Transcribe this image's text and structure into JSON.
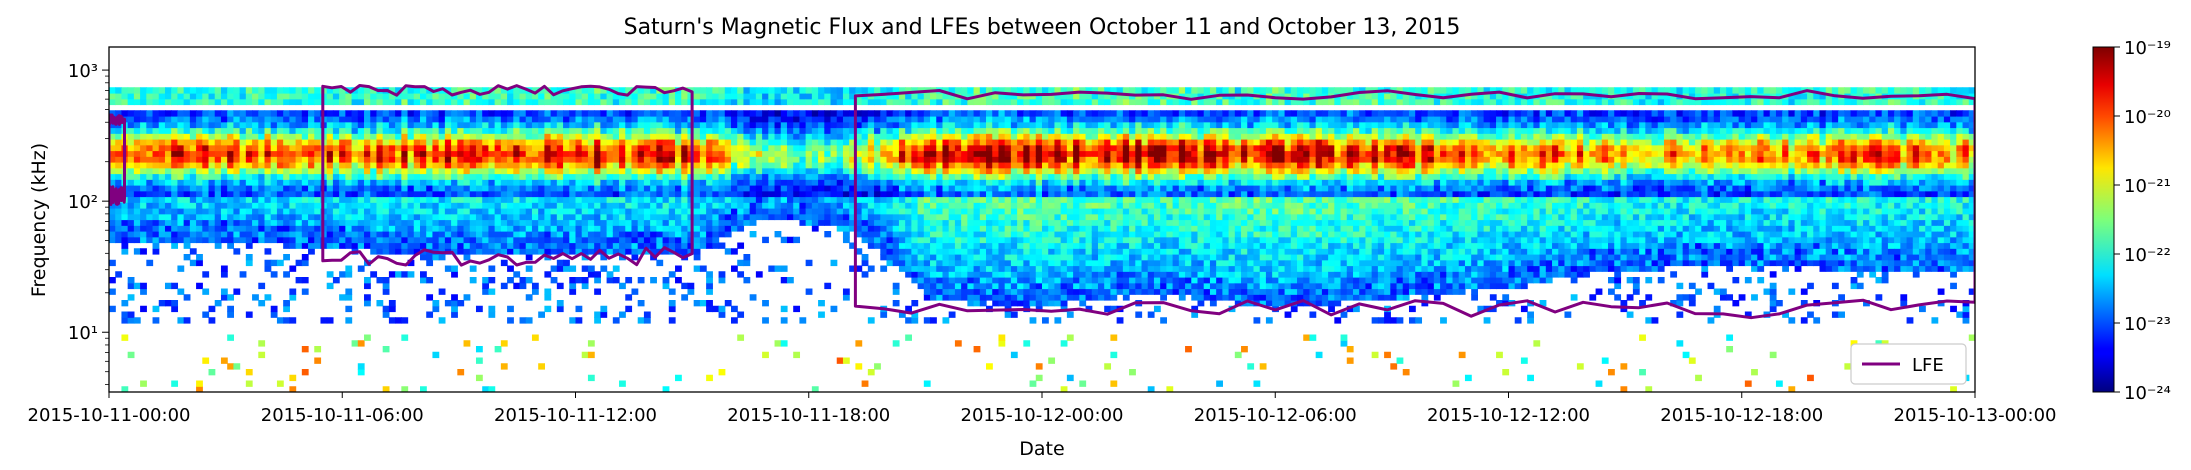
{
  "chart_data": {
    "type": "heatmap",
    "title": "Saturn's Magnetic Flux and LFEs between October 11 and October 13, 2015",
    "xlabel": "Date",
    "ylabel": "Frequency (kHz)",
    "x_ticks": [
      "2015-10-11-00:00",
      "2015-10-11-06:00",
      "2015-10-11-12:00",
      "2015-10-11-18:00",
      "2015-10-12-00:00",
      "2015-10-12-06:00",
      "2015-10-12-12:00",
      "2015-10-12-18:00",
      "2015-10-13-00:00"
    ],
    "xlim_hours": [
      0,
      48
    ],
    "y_scale": "log",
    "ylim_khz": [
      3.5,
      1500
    ],
    "y_ticks": [
      {
        "value": 10,
        "label": "10¹"
      },
      {
        "value": 100,
        "label": "10²"
      },
      {
        "value": 1000,
        "label": "10³"
      }
    ],
    "colorbar": {
      "colormap": "jet",
      "scale": "log",
      "range": [
        1e-24,
        1e-19
      ],
      "ticks": [
        {
          "value": -24,
          "label": "10⁻²⁴"
        },
        {
          "value": -23,
          "label": "10⁻²³"
        },
        {
          "value": -22,
          "label": "10⁻²²"
        },
        {
          "value": -21,
          "label": "10⁻²¹"
        },
        {
          "value": -20,
          "label": "10⁻²⁰"
        },
        {
          "value": -19,
          "label": "10⁻¹⁹"
        }
      ]
    },
    "legend": {
      "placement": "lower-right",
      "entries": [
        {
          "label": "LFE",
          "color": "#800080"
        }
      ]
    },
    "lfe_intervals": [
      {
        "start_hour": 0.0,
        "end_hour": 0.4,
        "f_low_khz": 110,
        "f_high_khz": 420
      },
      {
        "start_hour": 5.5,
        "end_hour": 15.0,
        "f_low_khz": 38,
        "f_high_khz": 700
      },
      {
        "start_hour": 19.2,
        "end_hour": 48.0,
        "f_low_khz": 15,
        "f_high_khz": 650
      }
    ],
    "activity_profile": [
      {
        "hour": 0,
        "f_low_khz": 48,
        "peak": 0.85
      },
      {
        "hour": 3,
        "f_low_khz": 50,
        "peak": 0.92
      },
      {
        "hour": 6,
        "f_low_khz": 42,
        "peak": 0.82
      },
      {
        "hour": 9,
        "f_low_khz": 40,
        "peak": 0.95
      },
      {
        "hour": 12,
        "f_low_khz": 40,
        "peak": 1.0
      },
      {
        "hour": 15,
        "f_low_khz": 38,
        "peak": 0.88
      },
      {
        "hour": 17,
        "f_low_khz": 75,
        "peak": 0.55
      },
      {
        "hour": 19,
        "f_low_khz": 60,
        "peak": 0.6
      },
      {
        "hour": 21,
        "f_low_khz": 18,
        "peak": 0.98
      },
      {
        "hour": 24,
        "f_low_khz": 16,
        "peak": 1.0
      },
      {
        "hour": 27,
        "f_low_khz": 20,
        "peak": 1.0
      },
      {
        "hour": 30,
        "f_low_khz": 15,
        "peak": 0.98
      },
      {
        "hour": 33,
        "f_low_khz": 18,
        "peak": 0.9
      },
      {
        "hour": 36,
        "f_low_khz": 22,
        "peak": 0.85
      },
      {
        "hour": 39,
        "f_low_khz": 30,
        "peak": 0.78
      },
      {
        "hour": 42,
        "f_low_khz": 32,
        "peak": 0.8
      },
      {
        "hour": 45,
        "f_low_khz": 30,
        "peak": 0.85
      },
      {
        "hour": 48,
        "f_low_khz": 30,
        "peak": 0.8
      }
    ]
  }
}
